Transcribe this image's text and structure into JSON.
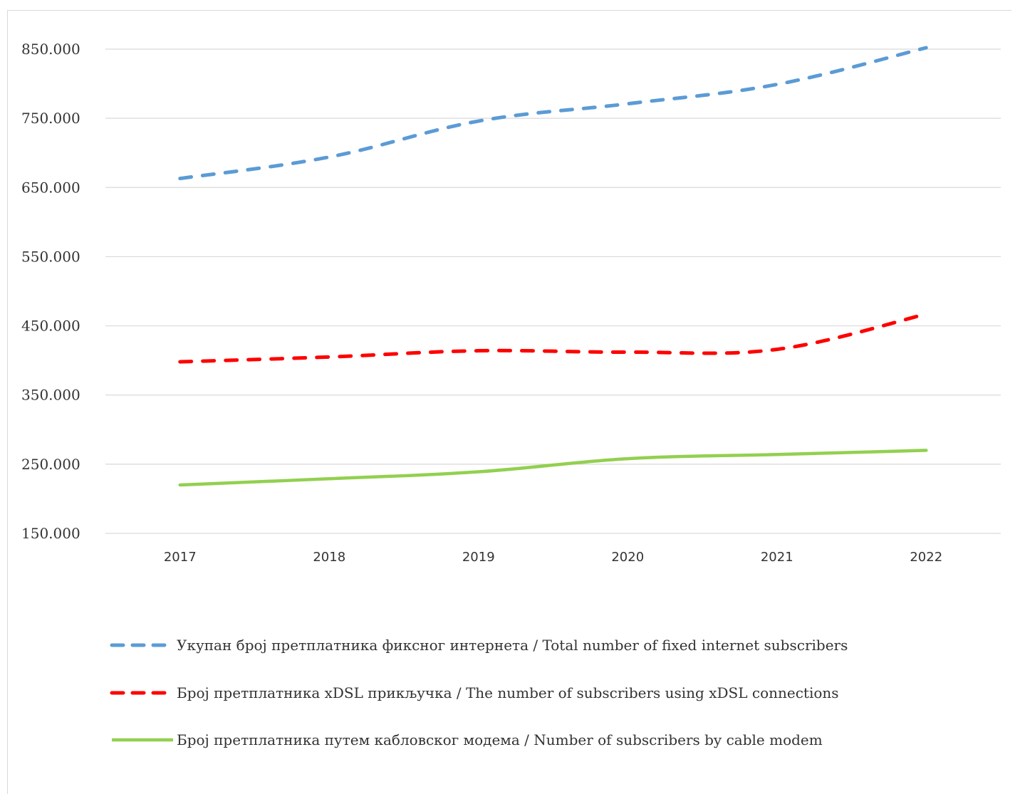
{
  "chart_data": {
    "type": "line",
    "title": "",
    "xlabel": "",
    "ylabel": "",
    "categories": [
      "2017",
      "2018",
      "2019",
      "2020",
      "2021",
      "2022"
    ],
    "y_ticks": [
      "850.000",
      "750.000",
      "650.000",
      "550.000",
      "450.000",
      "350.000",
      "250.000",
      "150.000"
    ],
    "ylim": [
      150000,
      850000
    ],
    "grid": true,
    "legend_position": "bottom",
    "series": [
      {
        "name": "Укупан број претплатника фиксног интернета / Total number of fixed internet subscribers",
        "values": [
          663000,
          694000,
          746000,
          771000,
          799000,
          852000
        ],
        "color": "#5b9bd5",
        "style": "dashed"
      },
      {
        "name": "Број претплатника xDSL прикључка / The number of subscribers using xDSL connections",
        "values": [
          398000,
          405000,
          414000,
          412000,
          416000,
          467000
        ],
        "color": "#ff0000",
        "style": "dashed"
      },
      {
        "name": "Број претплатника путем кабловског модема / Number of subscribers by cable modem",
        "values": [
          220000,
          229000,
          239000,
          258000,
          264000,
          270000
        ],
        "color": "#92d050",
        "style": "solid"
      }
    ]
  }
}
